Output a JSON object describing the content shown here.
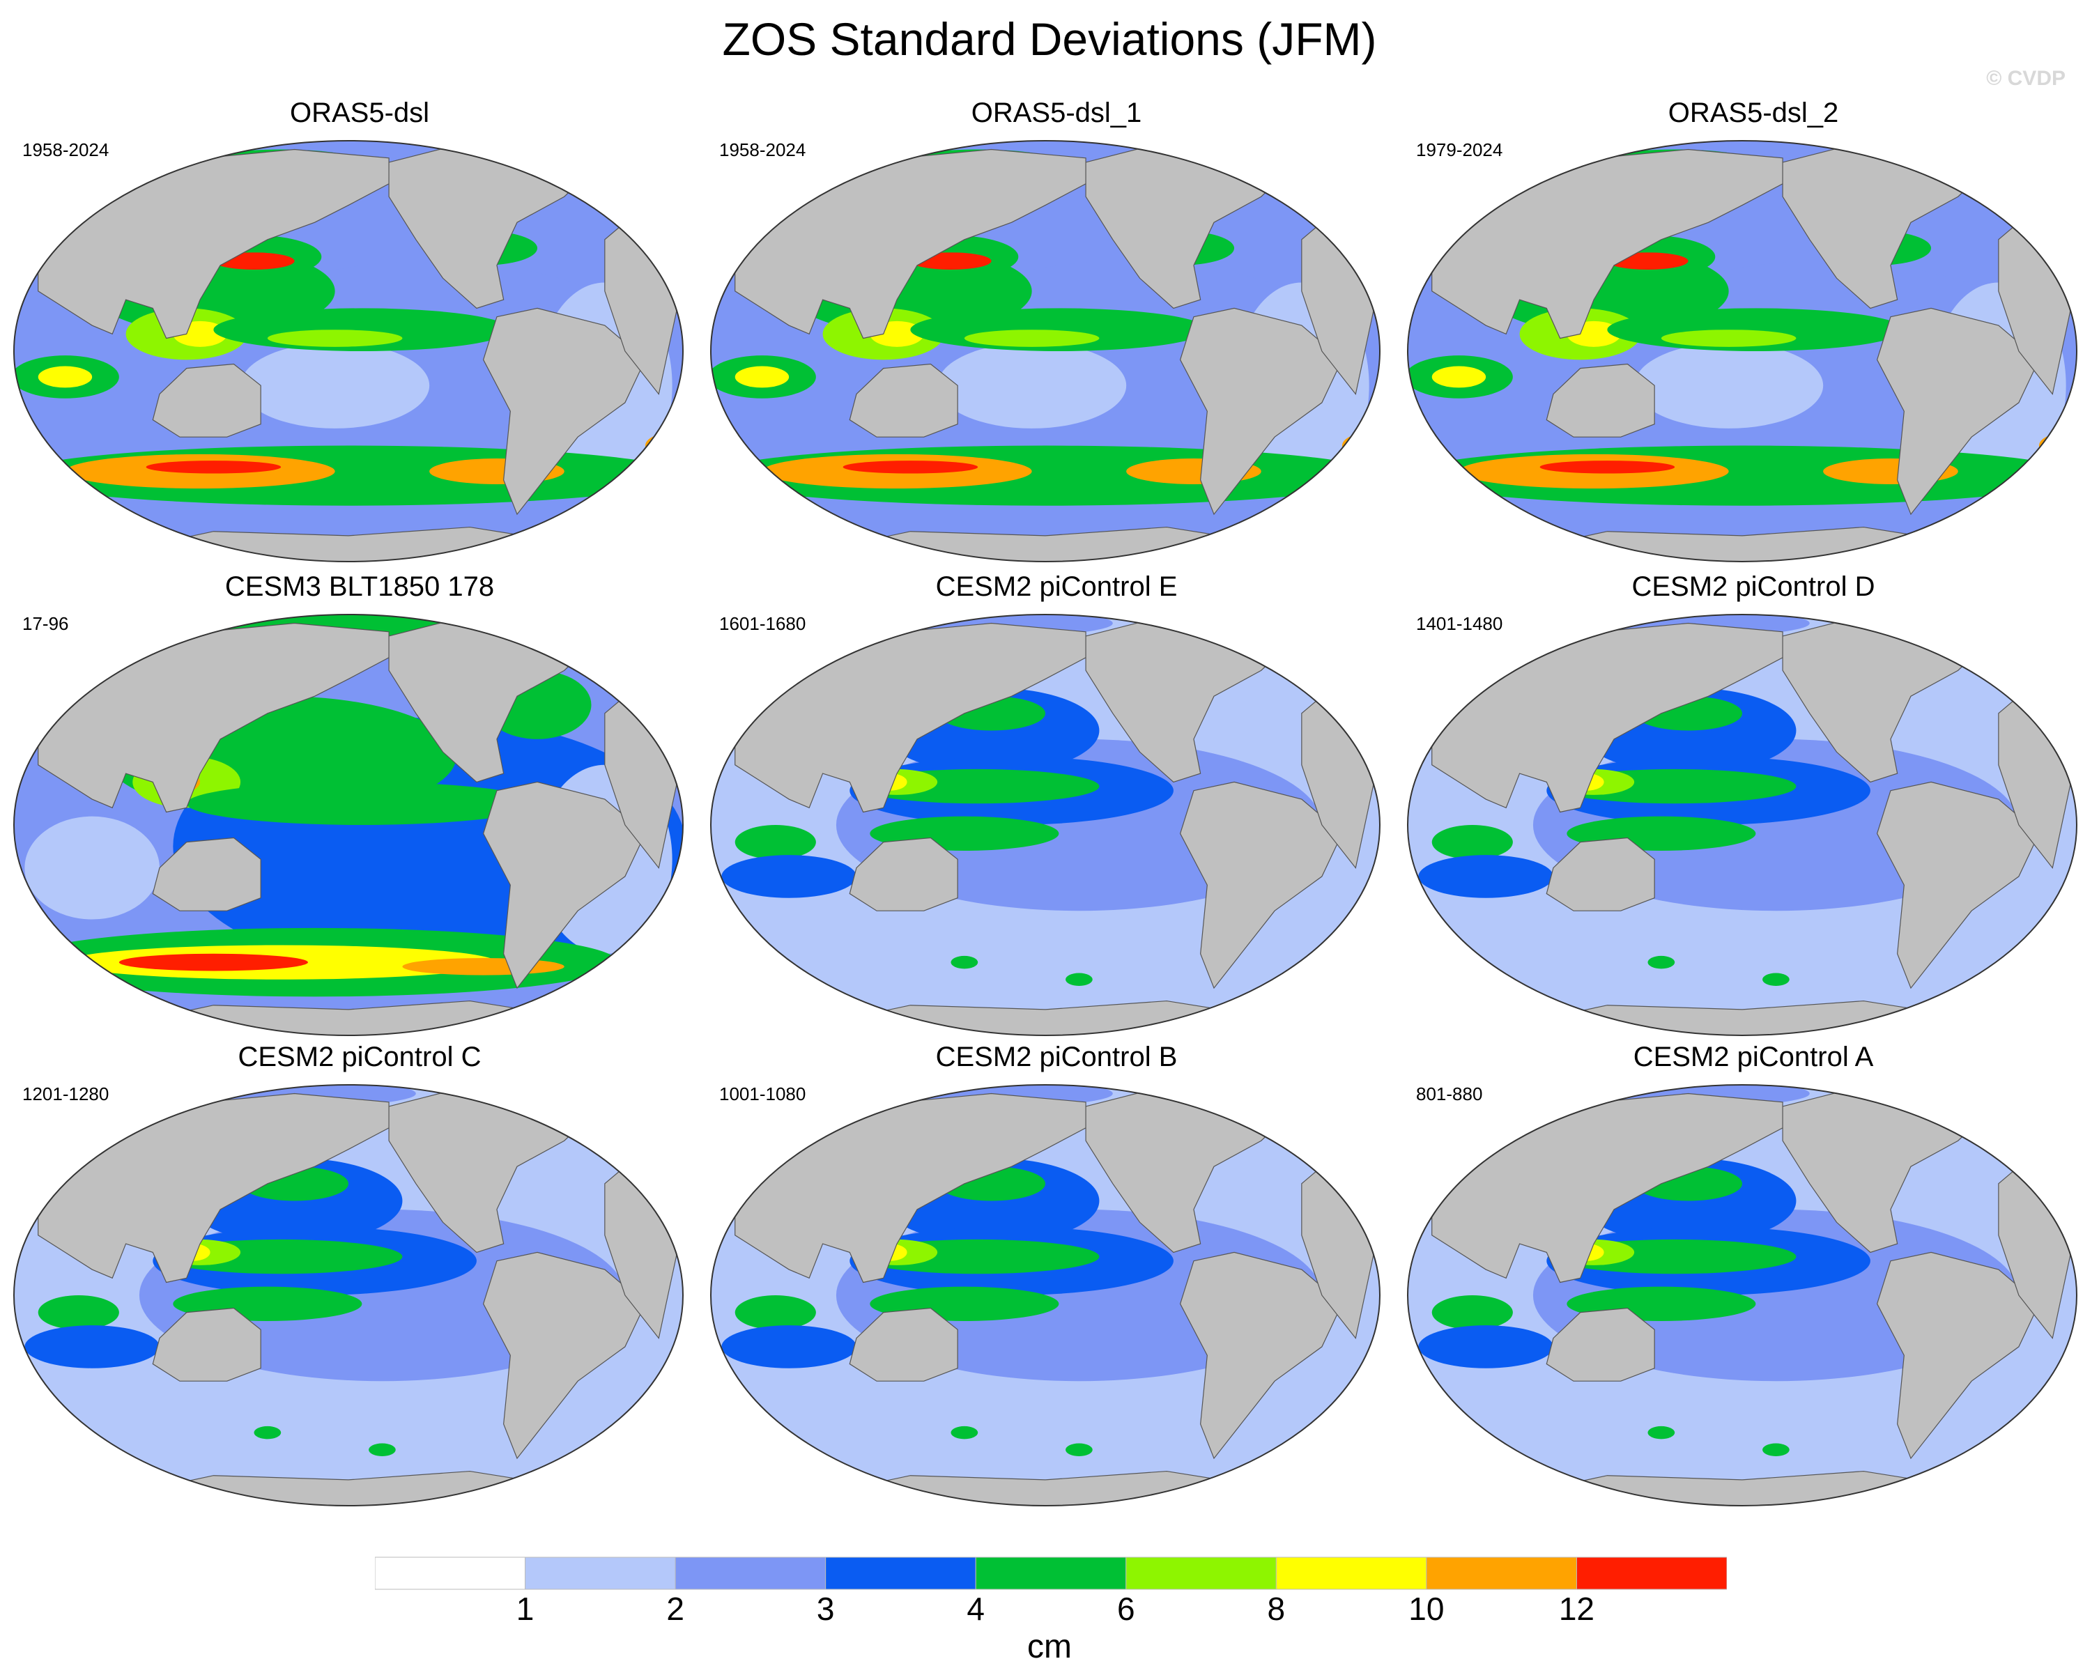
{
  "title": "ZOS Standard Deviations (JFM)",
  "watermark": "© CVDP",
  "panels": [
    {
      "title": "ORAS5-dsl",
      "years": "1958-2024",
      "style": "obs"
    },
    {
      "title": "ORAS5-dsl_1",
      "years": "1958-2024",
      "style": "obs"
    },
    {
      "title": "ORAS5-dsl_2",
      "years": "1979-2024",
      "style": "obs"
    },
    {
      "title": "CESM3 BLT1850 178",
      "years": "17-96",
      "style": "cesm3"
    },
    {
      "title": "CESM2 piControl E",
      "years": "1601-1680",
      "style": "cesm2"
    },
    {
      "title": "CESM2 piControl D",
      "years": "1401-1480",
      "style": "cesm2"
    },
    {
      "title": "CESM2 piControl C",
      "years": "1201-1280",
      "style": "cesm2"
    },
    {
      "title": "CESM2 piControl B",
      "years": "1001-1080",
      "style": "cesm2"
    },
    {
      "title": "CESM2 piControl A",
      "years": "801-880",
      "style": "cesm2"
    }
  ],
  "colorbar": {
    "colors": [
      "#ffffff",
      "#b4c8fa",
      "#7d96f5",
      "#0a5cf2",
      "#00c034",
      "#8ef500",
      "#ffff00",
      "#ffa300",
      "#ff1e00"
    ],
    "labels": [
      "1",
      "2",
      "3",
      "4",
      "6",
      "8",
      "10",
      "12"
    ],
    "unit": "cm"
  },
  "land_color": "#c0c0c0"
}
